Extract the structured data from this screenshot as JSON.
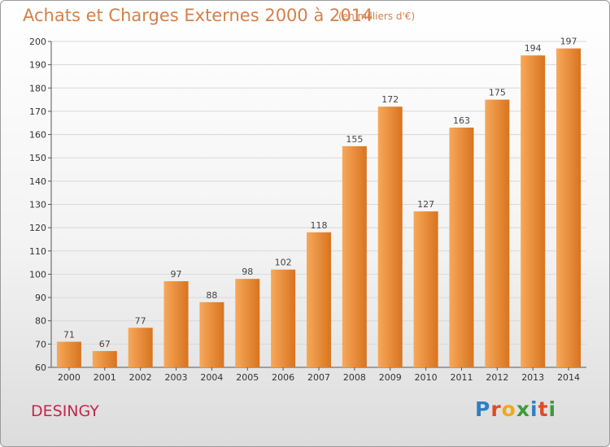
{
  "chart_data": {
    "type": "bar",
    "title": "Achats et Charges Externes 2000 à 2014",
    "subtitle": "(en milliers d'€)",
    "categories": [
      "2000",
      "2001",
      "2002",
      "2003",
      "2004",
      "2005",
      "2006",
      "2007",
      "2008",
      "2009",
      "2010",
      "2011",
      "2012",
      "2013",
      "2014"
    ],
    "values": [
      71,
      67,
      77,
      97,
      88,
      98,
      102,
      118,
      155,
      172,
      127,
      163,
      175,
      194,
      197
    ],
    "ylim": [
      60,
      200
    ],
    "yticks": [
      60,
      70,
      80,
      90,
      100,
      110,
      120,
      130,
      140,
      150,
      160,
      170,
      180,
      190,
      200
    ],
    "grid": true,
    "bar_color_light": "#f7a85a",
    "bar_color_dark": "#d8741f"
  },
  "footer": {
    "location": "DESINGY",
    "brand_letters": [
      {
        "ch": "P",
        "color": "#2f7fc4"
      },
      {
        "ch": "r",
        "color": "#e04b27"
      },
      {
        "ch": "o",
        "color": "#f3a81b"
      },
      {
        "ch": "x",
        "color": "#3f9a3b"
      },
      {
        "ch": "i",
        "color": "#2f7fc4"
      },
      {
        "ch": "t",
        "color": "#e04b27"
      },
      {
        "ch": "i",
        "color": "#3f9a3b"
      }
    ]
  }
}
